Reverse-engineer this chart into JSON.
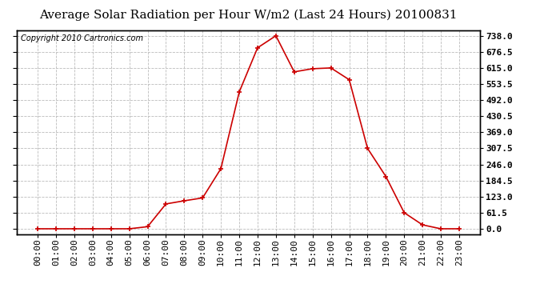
{
  "title": "Average Solar Radiation per Hour W/m2 (Last 24 Hours) 20100831",
  "copyright": "Copyright 2010 Cartronics.com",
  "hours": [
    "00:00",
    "01:00",
    "02:00",
    "03:00",
    "04:00",
    "05:00",
    "06:00",
    "07:00",
    "08:00",
    "09:00",
    "10:00",
    "11:00",
    "12:00",
    "13:00",
    "14:00",
    "15:00",
    "16:00",
    "17:00",
    "18:00",
    "19:00",
    "20:00",
    "21:00",
    "22:00",
    "23:00"
  ],
  "values": [
    0.0,
    0.0,
    0.0,
    0.0,
    0.0,
    0.0,
    8.0,
    95.0,
    107.0,
    118.0,
    230.0,
    523.0,
    692.0,
    738.0,
    600.0,
    612.0,
    615.0,
    570.0,
    307.5,
    200.0,
    61.5,
    15.0,
    0.0,
    0.0
  ],
  "line_color": "#cc0000",
  "marker_color": "#cc0000",
  "bg_color": "#ffffff",
  "grid_color": "#bbbbbb",
  "title_fontsize": 11,
  "copyright_fontsize": 7,
  "tick_fontsize": 8,
  "ytick_values": [
    0.0,
    61.5,
    123.0,
    184.5,
    246.0,
    307.5,
    369.0,
    430.5,
    492.0,
    553.5,
    615.0,
    676.5,
    738.0
  ],
  "ylim": [
    -20,
    760
  ],
  "border_color": "#000000"
}
